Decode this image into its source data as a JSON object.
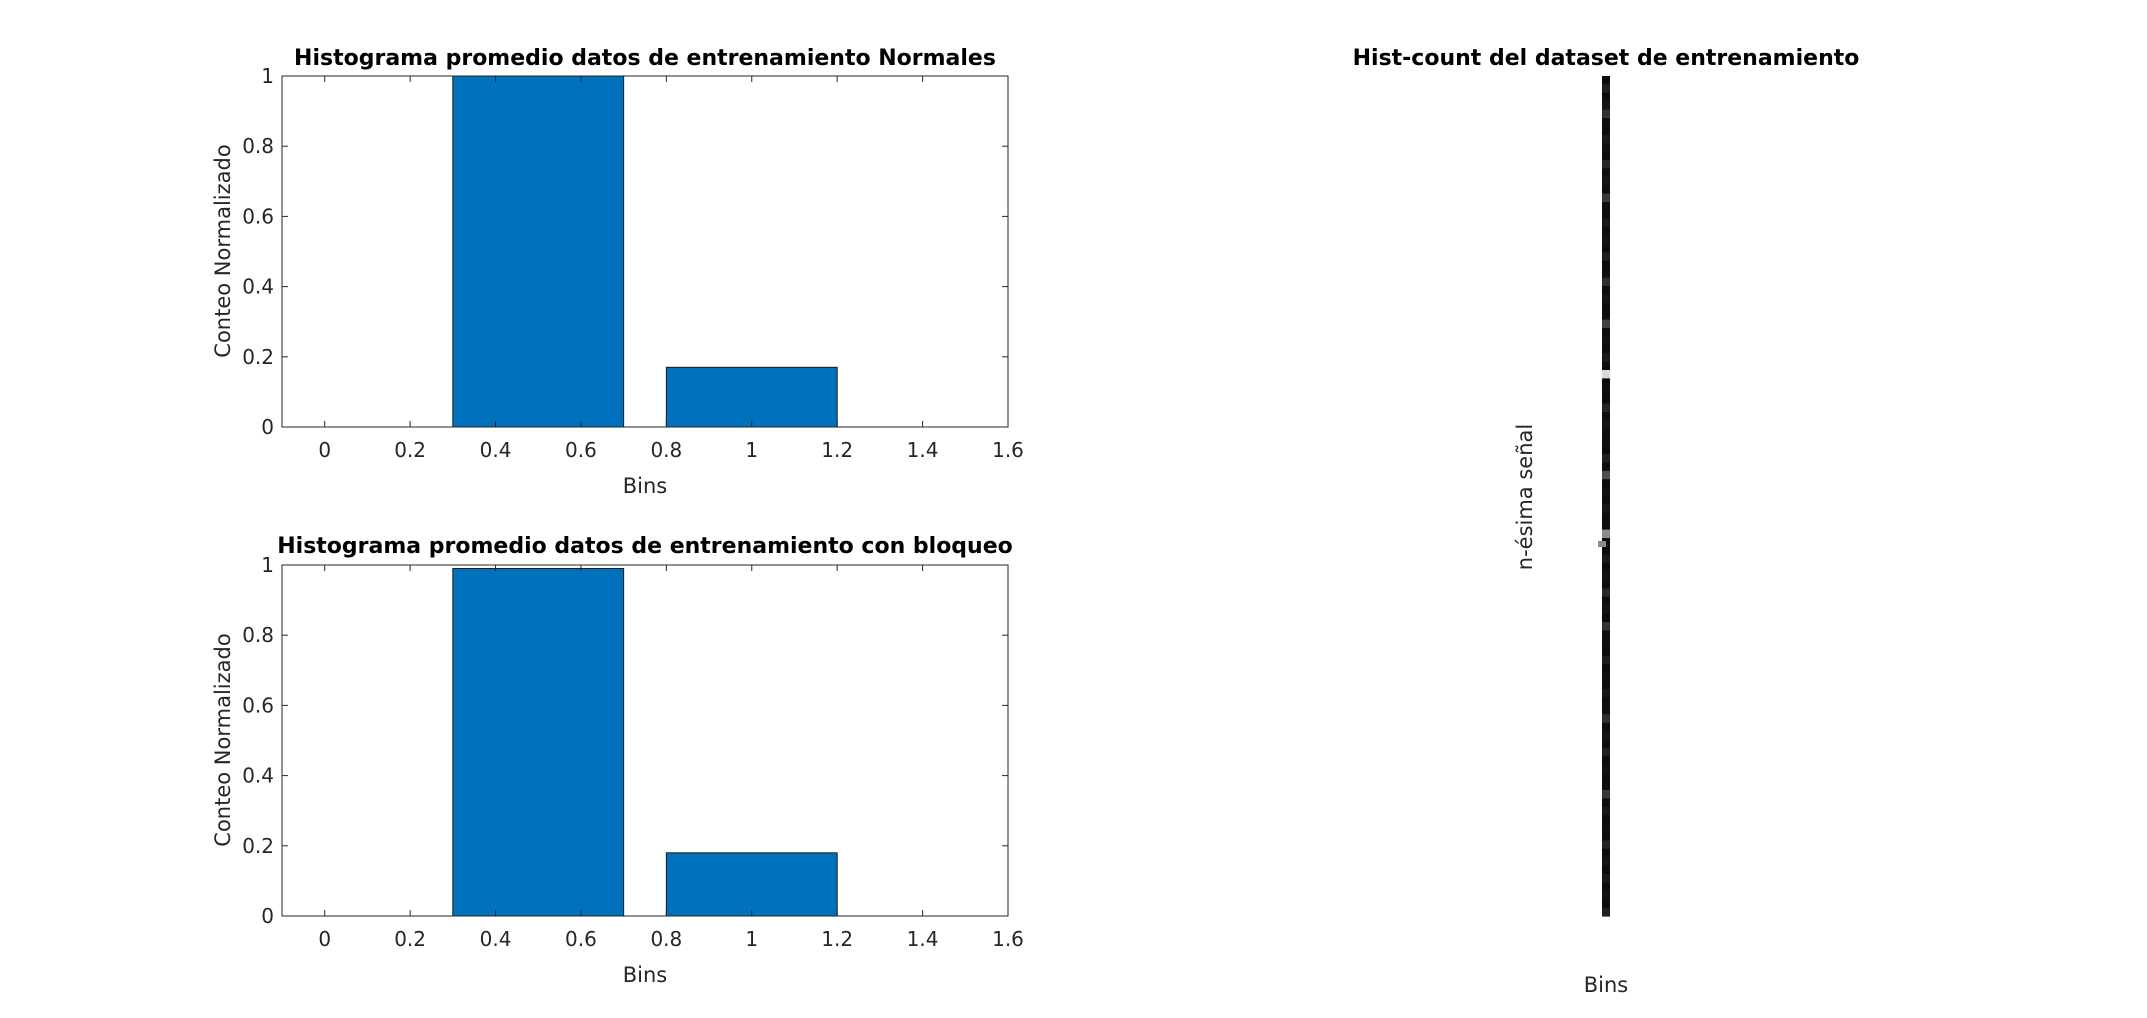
{
  "chart_data": [
    {
      "type": "bar",
      "title": "Histograma promedio datos de entrenamiento Normales",
      "xlabel": "Bins",
      "ylabel": "Conteo Normalizado",
      "x": [
        0.5,
        1.0
      ],
      "values": [
        1.0,
        0.17
      ],
      "bar_width": 0.4,
      "xlim": [
        -0.1,
        1.6
      ],
      "ylim": [
        0,
        1
      ],
      "xticks": [
        "0",
        "0.2",
        "0.4",
        "0.6",
        "0.8",
        "1",
        "1.2",
        "1.4",
        "1.6"
      ],
      "yticks": [
        "0",
        "0.2",
        "0.4",
        "0.6",
        "0.8",
        "1"
      ],
      "bar_color": "#0072bd",
      "grid": false
    },
    {
      "type": "bar",
      "title": "Histograma promedio datos de entrenamiento con bloqueo",
      "xlabel": "Bins",
      "ylabel": "Conteo Normalizado",
      "x": [
        0.5,
        1.0
      ],
      "values": [
        0.99,
        0.18
      ],
      "bar_width": 0.4,
      "xlim": [
        -0.1,
        1.6
      ],
      "ylim": [
        0,
        1
      ],
      "xticks": [
        "0",
        "0.2",
        "0.4",
        "0.6",
        "0.8",
        "1",
        "1.2",
        "1.4",
        "1.6"
      ],
      "yticks": [
        "0",
        "0.2",
        "0.4",
        "0.6",
        "0.8",
        "1"
      ],
      "bar_color": "#0072bd",
      "grid": false
    },
    {
      "type": "heatmap",
      "title": "Hist-count del dataset de entrenamiento",
      "xlabel": "Bins",
      "ylabel": "n-ésima señal",
      "colormap": "gray",
      "columns": 1,
      "rows": 100,
      "values": [
        0.05,
        0.12,
        0.05,
        0.08,
        0.2,
        0.06,
        0.05,
        0.1,
        0.07,
        0.05,
        0.15,
        0.05,
        0.08,
        0.05,
        0.22,
        0.06,
        0.05,
        0.09,
        0.05,
        0.07,
        0.05,
        0.12,
        0.05,
        0.06,
        0.18,
        0.05,
        0.08,
        0.05,
        0.06,
        0.25,
        0.05,
        0.07,
        0.05,
        0.1,
        0.05,
        0.85,
        0.05,
        0.06,
        0.05,
        0.14,
        0.05,
        0.08,
        0.05,
        0.06,
        0.05,
        0.12,
        0.05,
        0.3,
        0.05,
        0.07,
        0.05,
        0.09,
        0.05,
        0.06,
        0.55,
        0.06,
        0.05,
        0.1,
        0.05,
        0.07,
        0.05,
        0.16,
        0.05,
        0.08,
        0.05,
        0.2,
        0.05,
        0.06,
        0.05,
        0.11,
        0.05,
        0.07,
        0.05,
        0.09,
        0.05,
        0.06,
        0.18,
        0.05,
        0.08,
        0.05,
        0.12,
        0.05,
        0.07,
        0.05,
        0.06,
        0.22,
        0.05,
        0.09,
        0.05,
        0.06,
        0.05,
        0.14,
        0.05,
        0.08,
        0.05,
        0.1,
        0.05,
        0.07,
        0.05,
        0.12
      ],
      "side_marker": 0.55
    }
  ]
}
